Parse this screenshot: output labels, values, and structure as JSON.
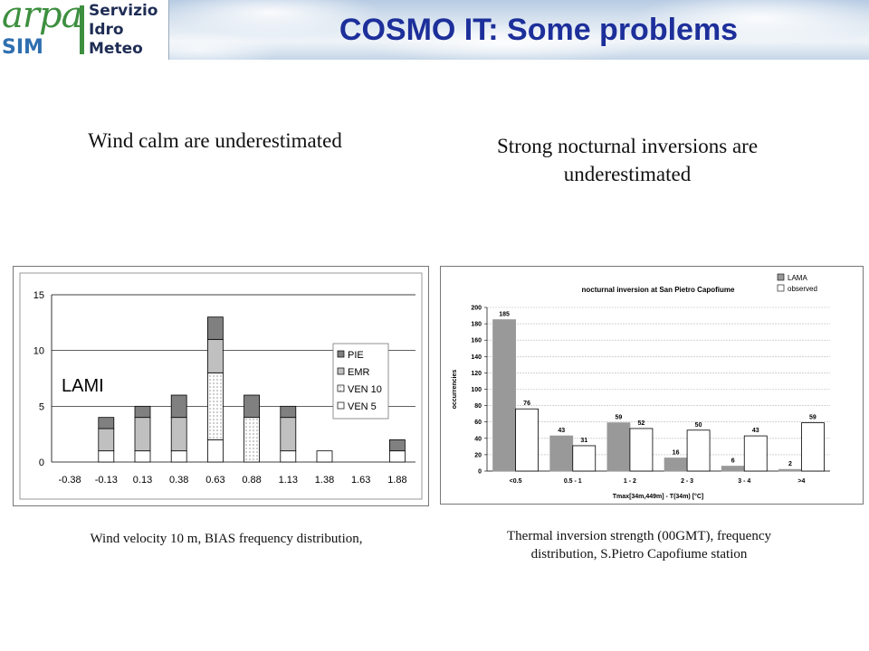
{
  "header": {
    "logo": {
      "arpa": "arpa",
      "sim": "SIM",
      "lines": [
        "Servizio",
        "Idro",
        "Meteo"
      ]
    },
    "title": "COSMO IT: Some problems"
  },
  "left": {
    "heading": "Wind calm are underestimated",
    "caption": "Wind velocity 10 m, BIAS frequency distribution,"
  },
  "right": {
    "heading_line1": "Strong nocturnal inversions are",
    "heading_line2": "underestimated",
    "caption_line1": "Thermal inversion strength (00GMT), frequency",
    "caption_line2": "distribution,  S.Pietro Capofiume station"
  },
  "chart_data": [
    {
      "type": "bar",
      "stacked": true,
      "annotation": "LAMI",
      "title": "",
      "xlabel": "",
      "ylabel": "",
      "categories": [
        "-0.38",
        "-0.13",
        "0.13",
        "0.38",
        "0.63",
        "0.88",
        "1.13",
        "1.38",
        "1.63",
        "1.88"
      ],
      "ylim": [
        0,
        15
      ],
      "yticks": [
        0,
        5,
        10,
        15
      ],
      "grid": true,
      "legend": "right",
      "series": [
        {
          "name": "VEN 5",
          "color": "#ffffff",
          "pattern": "none",
          "values": [
            0,
            1,
            1,
            1,
            2,
            0,
            1,
            1,
            0,
            1
          ]
        },
        {
          "name": "VEN 10",
          "color": "#ffffff",
          "pattern": "dots",
          "values": [
            0,
            0,
            0,
            0,
            6,
            4,
            0,
            0,
            0,
            0
          ]
        },
        {
          "name": "EMR",
          "color": "#c0c0c0",
          "pattern": "none",
          "values": [
            0,
            2,
            3,
            3,
            3,
            0,
            3,
            0,
            0,
            0
          ]
        },
        {
          "name": "PIE",
          "color": "#808080",
          "pattern": "none",
          "values": [
            0,
            1,
            1,
            2,
            2,
            2,
            1,
            0,
            0,
            1
          ]
        }
      ]
    },
    {
      "type": "bar",
      "title": "nocturnal inversion at San Pietro Capofiume",
      "xlabel": "Tmax[34m,449m] - T(34m)  [°C]",
      "ylabel": "occurrencies",
      "categories": [
        "<0.5",
        "0.5 - 1",
        "1 - 2",
        "2 - 3",
        "3 - 4",
        ">4"
      ],
      "ylim": [
        0,
        200
      ],
      "yticks": [
        0,
        20,
        40,
        60,
        80,
        100,
        120,
        140,
        160,
        180,
        200
      ],
      "grid": true,
      "legend": "top-right",
      "series": [
        {
          "name": "LAMA",
          "color": "#999999",
          "values": [
            185,
            43,
            59,
            16,
            6,
            2
          ]
        },
        {
          "name": "observed",
          "color": "#ffffff",
          "values": [
            76,
            31,
            52,
            50,
            43,
            59
          ]
        }
      ]
    }
  ]
}
